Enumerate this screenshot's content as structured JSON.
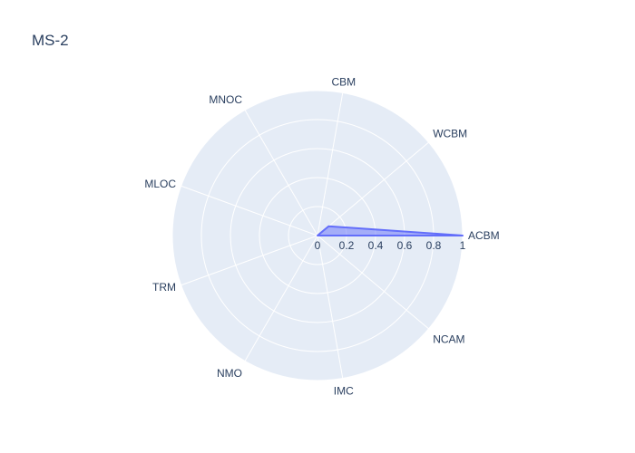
{
  "chart_data": {
    "type": "radar",
    "title": "MS-2",
    "categories": [
      "ACBM",
      "WCBM",
      "CBM",
      "MNOC",
      "MLOC",
      "TRM",
      "NMO",
      "IMC",
      "NCAM"
    ],
    "series": [
      {
        "values": [
          1,
          0.1,
          0,
          0,
          0,
          0,
          0,
          0,
          0
        ]
      }
    ],
    "radial_range": [
      0,
      1
    ],
    "radial_ticks": [
      "0",
      "0.2",
      "0.4",
      "0.6",
      "0.8",
      "1"
    ],
    "colors": {
      "background": "#e5ecf6",
      "grid": "#ffffff",
      "series_line": "#636efa",
      "series_fill": "rgba(99,110,250,0.5)",
      "text": "#2a3f5f"
    }
  }
}
